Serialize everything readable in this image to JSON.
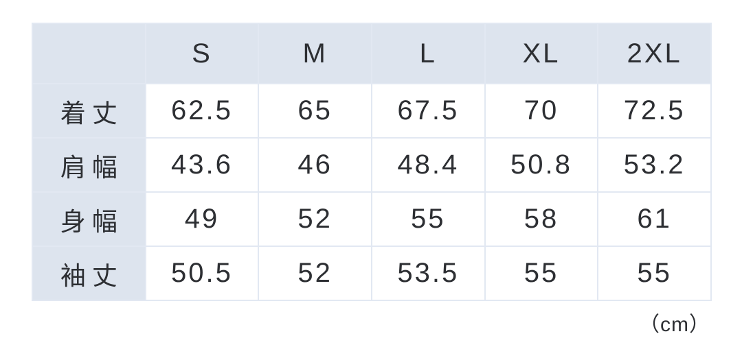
{
  "table": {
    "corner_label": "",
    "size_headers": [
      "S",
      "M",
      "L",
      "XL",
      "2XL"
    ],
    "rows": [
      {
        "label": "着丈",
        "values": [
          "62.5",
          "65",
          "67.5",
          "70",
          "72.5"
        ]
      },
      {
        "label": "肩幅",
        "values": [
          "43.6",
          "46",
          "48.4",
          "50.8",
          "53.2"
        ]
      },
      {
        "label": "身幅",
        "values": [
          "49",
          "52",
          "55",
          "58",
          "61"
        ]
      },
      {
        "label": "袖丈",
        "values": [
          "50.5",
          "52",
          "53.5",
          "55",
          "55"
        ]
      }
    ],
    "unit_label": "（cm）"
  },
  "colors": {
    "header_background": "#dde4ee",
    "cell_background": "#ffffff",
    "border": "#e2e8f2",
    "text": "#2d2f33"
  },
  "chart_data": {
    "type": "table",
    "title": "",
    "unit": "cm",
    "columns": [
      "S",
      "M",
      "L",
      "XL",
      "2XL"
    ],
    "row_labels": [
      "着丈",
      "肩幅",
      "身幅",
      "袖丈"
    ],
    "series": [
      {
        "name": "着丈",
        "values": [
          62.5,
          65,
          67.5,
          70,
          72.5
        ]
      },
      {
        "name": "肩幅",
        "values": [
          43.6,
          46,
          48.4,
          50.8,
          53.2
        ]
      },
      {
        "name": "身幅",
        "values": [
          49,
          52,
          55,
          58,
          61
        ]
      },
      {
        "name": "袖丈",
        "values": [
          50.5,
          52,
          53.5,
          55,
          55
        ]
      }
    ]
  }
}
